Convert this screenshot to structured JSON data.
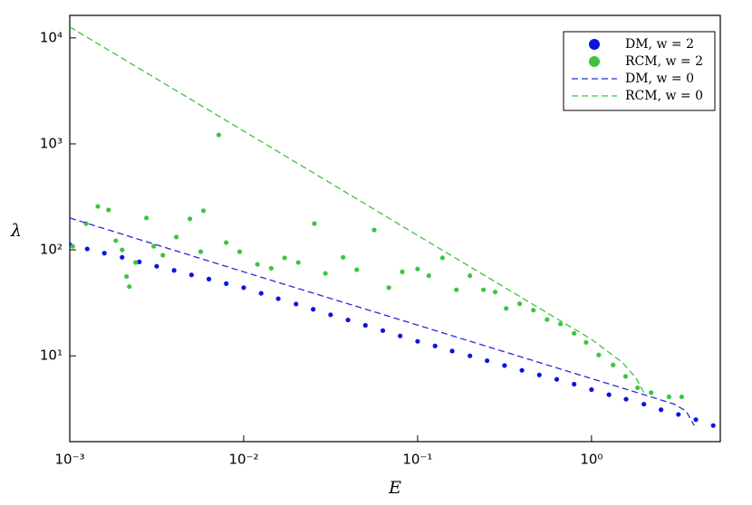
{
  "chart_data": {
    "type": "scatter",
    "x_label": "E",
    "y_label": "λ",
    "xscale": "log",
    "yscale": "log",
    "xlim": [
      0.001,
      5.5
    ],
    "ylim": [
      1.55,
      16300
    ],
    "xticks": [
      {
        "value": 0.001,
        "label": "10⁻³"
      },
      {
        "value": 0.01,
        "label": "10⁻²"
      },
      {
        "value": 0.1,
        "label": "10⁻¹"
      },
      {
        "value": 1,
        "label": "10⁰"
      }
    ],
    "yticks": [
      {
        "value": 10,
        "label": "10¹"
      },
      {
        "value": 100,
        "label": "10²"
      },
      {
        "value": 1000,
        "label": "10³"
      },
      {
        "value": 10000,
        "label": "10⁴"
      }
    ],
    "legend": "upper right",
    "series": [
      {
        "name": "DM, w = 2",
        "color": "#0a14e0",
        "style": "scatter",
        "x": [
          0.001,
          0.00126,
          0.00158,
          0.002,
          0.00251,
          0.00316,
          0.00398,
          0.00501,
          0.00631,
          0.00794,
          0.01,
          0.0126,
          0.0158,
          0.02,
          0.0251,
          0.0316,
          0.0398,
          0.0501,
          0.0631,
          0.0794,
          0.1,
          0.126,
          0.158,
          0.2,
          0.251,
          0.316,
          0.398,
          0.501,
          0.631,
          0.794,
          1,
          1.26,
          1.58,
          2,
          2.51,
          3.16,
          3.98,
          5.01
        ],
        "values": [
          112,
          102,
          93,
          85,
          77,
          70,
          64,
          58,
          53,
          48,
          44,
          38.9,
          34.6,
          30.8,
          27.5,
          24.4,
          21.8,
          19.4,
          17.3,
          15.4,
          13.7,
          12.4,
          11.1,
          10.0,
          9.0,
          8.1,
          7.3,
          6.6,
          6.0,
          5.4,
          4.8,
          4.3,
          3.9,
          3.5,
          3.1,
          2.8,
          2.5,
          2.2
        ]
      },
      {
        "name": "RCM, w = 2",
        "color": "#3ec43e",
        "style": "scatter",
        "x": [
          0.00104,
          0.00124,
          0.00145,
          0.00167,
          0.00184,
          0.002,
          0.00212,
          0.0022,
          0.00239,
          0.00276,
          0.00304,
          0.00343,
          0.0041,
          0.00491,
          0.00566,
          0.00587,
          0.00719,
          0.00793,
          0.00948,
          0.012,
          0.0144,
          0.0172,
          0.0206,
          0.0255,
          0.0295,
          0.0373,
          0.0447,
          0.0563,
          0.0683,
          0.0816,
          0.1,
          0.116,
          0.139,
          0.167,
          0.2,
          0.239,
          0.279,
          0.323,
          0.386,
          0.463,
          0.555,
          0.663,
          0.794,
          0.93,
          1.1,
          1.33,
          1.57,
          1.84,
          2.2,
          2.79,
          3.3
        ],
        "values": [
          108,
          177,
          257,
          238,
          122,
          100,
          56,
          45,
          76,
          200,
          108,
          89,
          132,
          196,
          96,
          234,
          1215,
          117,
          96,
          73,
          67,
          84,
          76,
          177,
          60,
          85,
          65,
          154,
          44,
          62,
          66,
          57,
          84,
          42,
          57,
          42,
          40,
          28,
          31,
          27,
          22,
          20,
          16.3,
          13.4,
          10.2,
          8.2,
          6.4,
          5.0,
          4.5,
          4.1,
          4.1
        ]
      },
      {
        "name": "DM, w = 0",
        "color": "#2a2ad8",
        "style": "dashed",
        "x": [
          0.001,
          0.01,
          0.1,
          1,
          2,
          3,
          3.5,
          3.9
        ],
        "values": [
          200,
          62,
          19.5,
          6.1,
          4.3,
          3.5,
          3.0,
          2.2
        ]
      },
      {
        "name": "RCM, w = 0",
        "color": "#3ec43e",
        "style": "dashed",
        "x": [
          0.001,
          0.01,
          0.1,
          1,
          1.5,
          1.8,
          2
        ],
        "values": [
          12700,
          1320,
          137,
          14.3,
          8.7,
          6.2,
          4.5
        ]
      }
    ]
  }
}
